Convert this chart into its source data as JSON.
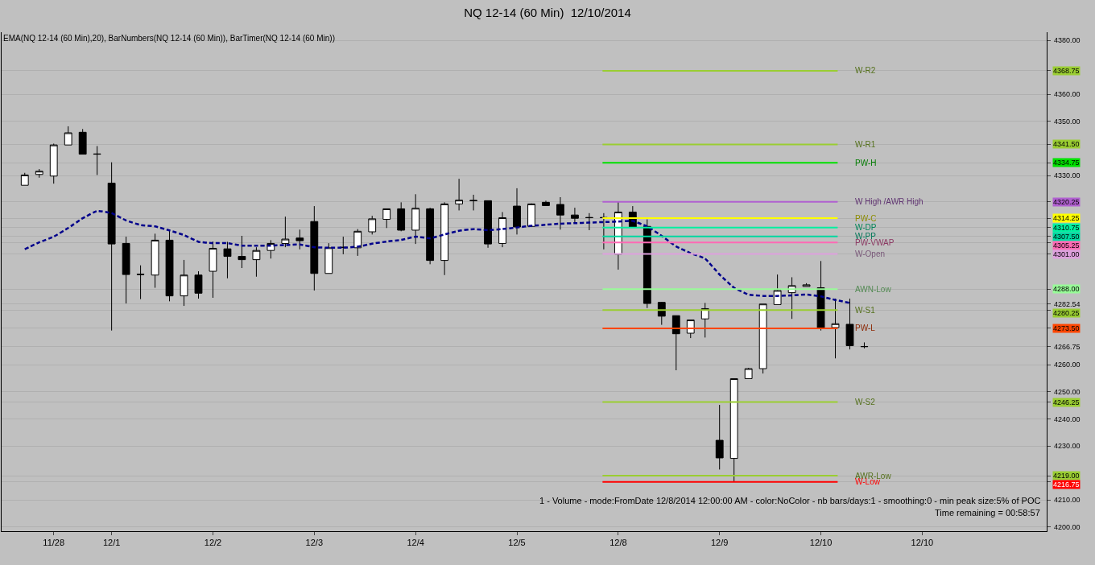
{
  "chart_data": {
    "type": "candlestick",
    "title": "NQ 12-14 (60 Min)  12/10/2014",
    "categories": [
      null,
      null,
      "11/28",
      null,
      null,
      null,
      "12/1",
      null,
      null,
      null,
      null,
      null,
      null,
      "12/2",
      null,
      null,
      null,
      null,
      null,
      null,
      "12/3",
      null,
      null,
      null,
      null,
      null,
      null,
      "12/4",
      null,
      null,
      null,
      null,
      null,
      null,
      "12/5",
      null,
      null,
      null,
      null,
      null,
      null,
      "12/8",
      null,
      null,
      null,
      null,
      null,
      null,
      "12/9",
      null,
      null,
      null,
      null,
      null,
      null,
      "12/10",
      null,
      null,
      null,
      null,
      null,
      null,
      "12/10"
    ],
    "ohlc": [
      [
        4326.4,
        4331.0,
        4326.4,
        4330.2
      ],
      [
        4330.4,
        4332.4,
        4329.2,
        4331.6
      ],
      [
        4329.8,
        4341.8,
        4327.0,
        4341.3
      ],
      [
        4341.3,
        4348.2,
        4341.3,
        4345.8
      ],
      [
        4346.0,
        4347.2,
        4337.9,
        4337.9
      ],
      [
        4338.0,
        4340.9,
        4330.2,
        4337.9
      ],
      [
        4327.2,
        4334.9,
        4272.7,
        4304.7
      ],
      [
        4304.9,
        4307.4,
        4282.7,
        4293.4
      ],
      [
        4293.5,
        4296.8,
        4284.3,
        4293.4
      ],
      [
        4293.2,
        4308.5,
        4288.5,
        4306.1
      ],
      [
        4306.1,
        4309.6,
        4283.5,
        4285.5
      ],
      [
        4285.5,
        4298.8,
        4281.8,
        4293.2
      ],
      [
        4293.2,
        4294.6,
        4284.5,
        4286.5
      ],
      [
        4294.6,
        4305.6,
        4284.8,
        4303.1
      ],
      [
        4302.9,
        4305.5,
        4292.0,
        4300.1
      ],
      [
        4300.1,
        4307.7,
        4295.8,
        4298.9
      ],
      [
        4298.9,
        4303.5,
        4292.6,
        4302.3
      ],
      [
        4302.3,
        4306.1,
        4299.3,
        4304.9
      ],
      [
        4304.9,
        4314.8,
        4303.5,
        4306.5
      ],
      [
        4306.9,
        4310.0,
        4302.7,
        4305.9
      ],
      [
        4313.0,
        4318.7,
        4287.5,
        4293.8
      ],
      [
        4293.8,
        4305.0,
        4293.8,
        4303.3
      ],
      [
        4303.5,
        4307.4,
        4300.9,
        4303.4
      ],
      [
        4303.3,
        4310.2,
        4300.3,
        4309.4
      ],
      [
        4309.2,
        4315.1,
        4308.2,
        4314.0
      ],
      [
        4313.8,
        4317.7,
        4310.6,
        4317.7
      ],
      [
        4317.7,
        4320.1,
        4309.4,
        4309.8
      ],
      [
        4309.8,
        4323.1,
        4304.7,
        4317.9
      ],
      [
        4317.7,
        4318.1,
        4297.2,
        4298.6
      ],
      [
        4298.6,
        4320.1,
        4293.2,
        4319.5
      ],
      [
        4319.5,
        4328.8,
        4317.1,
        4320.9
      ],
      [
        4320.8,
        4322.9,
        4317.1,
        4320.7
      ],
      [
        4320.7,
        4320.7,
        4303.3,
        4304.7
      ],
      [
        4304.9,
        4316.5,
        4303.5,
        4314.4
      ],
      [
        4318.7,
        4325.3,
        4308.2,
        4311.0
      ],
      [
        4311.2,
        4319.7,
        4311.2,
        4319.5
      ],
      [
        4320.1,
        4320.7,
        4318.9,
        4318.9
      ],
      [
        4319.3,
        4322.0,
        4310.0,
        4315.4
      ],
      [
        4315.4,
        4318.1,
        4312.4,
        4314.2
      ],
      [
        4314.5,
        4316.1,
        4309.8,
        4314.4
      ],
      [
        4314.5,
        4316.1,
        4302.7,
        4314.4
      ],
      [
        4300.9,
        4320.3,
        4295.2,
        4316.5
      ],
      [
        4316.5,
        4318.7,
        4311.0,
        4311.0
      ],
      [
        4311.2,
        4313.8,
        4281.0,
        4282.7
      ],
      [
        4283.1,
        4283.3,
        4274.8,
        4278.0
      ],
      [
        4278.2,
        4278.2,
        4258.0,
        4271.5
      ],
      [
        4271.7,
        4276.6,
        4269.9,
        4276.6
      ],
      [
        4277.0,
        4282.9,
        4270.1,
        4280.8
      ],
      [
        4232.1,
        4245.2,
        4221.3,
        4225.6
      ],
      [
        4225.4,
        4254.9,
        4216.9,
        4254.9
      ],
      [
        4254.9,
        4258.9,
        4254.9,
        4258.6
      ],
      [
        4258.6,
        4282.5,
        4256.8,
        4282.5
      ],
      [
        4282.3,
        4293.4,
        4282.3,
        4287.5
      ],
      [
        4286.7,
        4292.4,
        4277.0,
        4289.3
      ],
      [
        4289.0,
        4290.2,
        4289.0,
        4289.6
      ],
      [
        4288.5,
        4298.4,
        4272.7,
        4273.8
      ],
      [
        4273.8,
        4284.5,
        4262.4,
        4275.2
      ],
      [
        4275.0,
        4284.5,
        4265.7,
        4267.1
      ],
      [
        4266.8,
        4268.3,
        4266.1,
        4266.75
      ],
      null,
      null,
      null,
      null
    ],
    "series": [
      {
        "type": "line",
        "color": "#00008b",
        "line_style": "dashed",
        "values": [
          4302.8,
          4305.3,
          4307.4,
          4310.6,
          4314.2,
          4316.9,
          4316.1,
          4313.4,
          4311.7,
          4311.2,
          4309.7,
          4308.0,
          4305.5,
          4305.0,
          4305.0,
          4304.1,
          4304.1,
          4304.1,
          4304.3,
          4304.5,
          4303.5,
          4303.3,
          4303.3,
          4303.7,
          4304.8,
          4305.6,
          4306.2,
          4307.4,
          4306.8,
          4308.2,
          4309.6,
          4310.2,
          4309.8,
          4310.2,
          4310.8,
          4311.4,
          4311.8,
          4312.2,
          4312.4,
          4312.6,
          4312.8,
          4313.0,
          4313.2,
          4311.2,
          4307.7,
          4303.8,
          4301.3,
          4299.3,
          4293.4,
          4288.5,
          4286.0,
          4285.5,
          4285.5,
          4285.7,
          4286.0,
          4285.3,
          4284.0,
          4282.9,
          null,
          null,
          null,
          null,
          null
        ]
      }
    ],
    "ylim": [
      4198.5,
      4383
    ],
    "yticks": [
      {
        "value": 4200,
        "label": "4200.00"
      },
      {
        "value": 4210,
        "label": "4210.00"
      },
      {
        "value": 4216.75,
        "label": "4216.75"
      },
      {
        "value": 4219,
        "label": "4219.00"
      },
      {
        "value": 4230,
        "label": "4230.00"
      },
      {
        "value": 4240,
        "label": "4240.00"
      },
      {
        "value": 4246.25,
        "label": "4246.25"
      },
      {
        "value": 4250,
        "label": "4250.00"
      },
      {
        "value": 4260,
        "label": "4260.00"
      },
      {
        "value": 4266.75,
        "label": "4266.75"
      },
      {
        "value": 4273.5,
        "label": "4273.50"
      },
      {
        "value": 4280.25,
        "label": "4280.25"
      },
      {
        "value": 4282.54,
        "label": "4282.54"
      },
      {
        "value": 4288,
        "label": "4288.00"
      },
      {
        "value": 4301,
        "label": "4301.00"
      },
      {
        "value": 4305.25,
        "label": "4305.25"
      },
      {
        "value": 4307.5,
        "label": "4307.50"
      },
      {
        "value": 4310.75,
        "label": "4310.75"
      },
      {
        "value": 4314.25,
        "label": "4314.25"
      },
      {
        "value": 4320.25,
        "label": "4320.25"
      },
      {
        "value": 4330,
        "label": "4330.00"
      },
      {
        "value": 4334.75,
        "label": "4334.75"
      },
      {
        "value": 4341.5,
        "label": "4341.50"
      },
      {
        "value": 4350,
        "label": "4350.00"
      },
      {
        "value": 4360,
        "label": "4360.00"
      },
      {
        "value": 4368.75,
        "label": "4368.75"
      },
      {
        "value": 4380,
        "label": "4380.00"
      }
    ],
    "grid": "y",
    "legend": false,
    "ref_lines": [
      {
        "axis": "y",
        "value": 4368.75,
        "label": "W-R2",
        "color": "#9acd32"
      },
      {
        "axis": "y",
        "value": 4341.5,
        "label": "W-R1",
        "color": "#9acd32"
      },
      {
        "axis": "y",
        "value": 4334.75,
        "label": "PW-H",
        "color": "#00e000"
      },
      {
        "axis": "y",
        "value": 4320.25,
        "label": "W High /AWR High",
        "color": "#b060d0"
      },
      {
        "axis": "y",
        "value": 4314.25,
        "label": "PW-C",
        "color": "#ffff00"
      },
      {
        "axis": "y",
        "value": 4310.75,
        "label": "W-DP",
        "color": "#00f0a0"
      },
      {
        "axis": "y",
        "value": 4307.5,
        "label": "W-PP",
        "color": "#00d8a0"
      },
      {
        "axis": "y",
        "value": 4305.25,
        "label": "PW-VWAP",
        "color": "#ff69b4"
      },
      {
        "axis": "y",
        "value": 4301.0,
        "label": "W-Open",
        "color": "#dda0dd"
      },
      {
        "axis": "y",
        "value": 4288.0,
        "label": "AWN-Low",
        "color": "#98fb98"
      },
      {
        "axis": "y",
        "value": 4280.25,
        "label": "W-S1",
        "color": "#9acd32"
      },
      {
        "axis": "y",
        "value": 4273.5,
        "label": "PW-L",
        "color": "#ff4500"
      },
      {
        "axis": "y",
        "value": 4246.25,
        "label": "W-S2",
        "color": "#9acd32"
      },
      {
        "axis": "y",
        "value": 4219.0,
        "label": "AWR-Low",
        "color": "#9acd32"
      },
      {
        "axis": "y",
        "value": 4216.75,
        "label": "W-Low",
        "color": "#ff0000"
      }
    ],
    "annotations": [
      "EMA(NQ 12-14 (60 Min),20), BarNumbers(NQ 12-14 (60 Min)), BarTimer(NQ 12-14 (60 Min))",
      "1 - Volume - mode:FromDate 12/8/2014 12:00:00 AM - color:NoColor - nb bars/days:1 - smoothing:0 - min peak size:5% of POC",
      "Time remaining = 00:58:57"
    ]
  }
}
